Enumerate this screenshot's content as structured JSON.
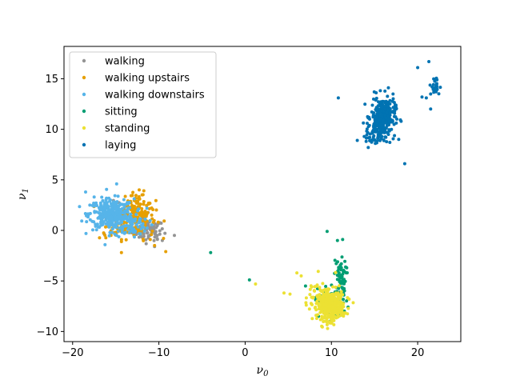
{
  "chart_data": {
    "type": "scatter",
    "title": "",
    "xlabel": "ν",
    "xlabel_sub": "0",
    "ylabel": "ν",
    "ylabel_sub": "1",
    "xlim": [
      -21,
      25
    ],
    "ylim": [
      -11,
      18.2
    ],
    "xticks": [
      -20,
      -10,
      0,
      10,
      20
    ],
    "yticks": [
      -10,
      -5,
      0,
      5,
      10,
      15
    ],
    "xtick_labels": [
      "−20",
      "−10",
      "0",
      "10",
      "20"
    ],
    "ytick_labels": [
      "−10",
      "−5",
      "0",
      "5",
      "10",
      "15"
    ],
    "grid": false,
    "legend_position": "top-left",
    "series": [
      {
        "name": "walking",
        "color": "#949494",
        "clusters": [
          {
            "center": [
              -11.2,
              0.0
            ],
            "spread": [
              0.9,
              0.5
            ],
            "n": 80
          },
          {
            "center": [
              -13.5,
              1.0
            ],
            "spread": [
              1.5,
              0.9
            ],
            "n": 30
          }
        ],
        "points": [
          [
            -8.2,
            -0.5
          ],
          [
            -9.6,
            -1.0
          ],
          [
            -10.2,
            -0.8
          ],
          [
            -10.5,
            -1.6
          ]
        ]
      },
      {
        "name": "walking upstairs",
        "color": "#E69F00",
        "clusters": [
          {
            "center": [
              -13.0,
              1.2
            ],
            "spread": [
              1.3,
              1.0
            ],
            "n": 160
          },
          {
            "center": [
              -12.5,
              2.6
            ],
            "spread": [
              0.8,
              0.6
            ],
            "n": 40
          },
          {
            "center": [
              -14.5,
              0.0
            ],
            "spread": [
              1.2,
              0.4
            ],
            "n": 40
          }
        ],
        "points": [
          [
            -9.2,
            -2.1
          ],
          [
            -10.5,
            -1.5
          ],
          [
            -11.0,
            -0.9
          ]
        ]
      },
      {
        "name": "walking downstairs",
        "color": "#56B4E9",
        "clusters": [
          {
            "center": [
              -15.5,
              1.6
            ],
            "spread": [
              1.3,
              0.75
            ],
            "n": 330
          },
          {
            "center": [
              -13.2,
              0.5
            ],
            "spread": [
              1.0,
              0.6
            ],
            "n": 70
          }
        ],
        "points": [
          [
            -18.5,
            3.8
          ],
          [
            -18.0,
            2.5
          ],
          [
            -17.5,
            3.3
          ],
          [
            -14.9,
            4.6
          ]
        ]
      },
      {
        "name": "sitting",
        "color": "#029E73",
        "clusters": [
          {
            "center": [
              11.0,
              -4.5
            ],
            "spread": [
              0.35,
              0.8
            ],
            "n": 50
          },
          {
            "center": [
              10.2,
              -7.0
            ],
            "spread": [
              0.9,
              0.9
            ],
            "n": 70
          }
        ],
        "points": [
          [
            -4.0,
            -2.2
          ],
          [
            0.5,
            -4.9
          ],
          [
            9.5,
            -0.1
          ],
          [
            10.7,
            -1.0
          ],
          [
            11.3,
            -0.9
          ],
          [
            7.0,
            -5.5
          ],
          [
            8.5,
            -8.5
          ],
          [
            10.0,
            -9.0
          ]
        ]
      },
      {
        "name": "standing",
        "color": "#ECE133",
        "clusters": [
          {
            "center": [
              9.9,
              -7.5
            ],
            "spread": [
              0.75,
              0.7
            ],
            "n": 330
          },
          {
            "center": [
              9.0,
              -6.5
            ],
            "spread": [
              1.3,
              0.9
            ],
            "n": 60
          }
        ],
        "points": [
          [
            1.2,
            -5.3
          ],
          [
            4.5,
            -6.2
          ],
          [
            5.2,
            -6.3
          ],
          [
            6.0,
            -4.2
          ],
          [
            6.5,
            -4.5
          ]
        ]
      },
      {
        "name": "laying",
        "color": "#0173B2",
        "clusters": [
          {
            "center": [
              16.0,
              11.2
            ],
            "spread": [
              0.7,
              1.0
            ],
            "n": 260
          },
          {
            "center": [
              15.0,
              9.5
            ],
            "spread": [
              0.5,
              0.7
            ],
            "n": 60
          },
          {
            "center": [
              22.0,
              14.2
            ],
            "spread": [
              0.3,
              0.5
            ],
            "n": 25
          }
        ],
        "points": [
          [
            10.8,
            13.1
          ],
          [
            13.0,
            8.9
          ],
          [
            18.5,
            6.6
          ],
          [
            17.8,
            9.0
          ],
          [
            20.0,
            16.1
          ],
          [
            21.3,
            16.7
          ],
          [
            20.5,
            13.2
          ],
          [
            21.0,
            13.1
          ],
          [
            21.5,
            12.0
          ],
          [
            17.5,
            12.0
          ]
        ]
      }
    ]
  }
}
